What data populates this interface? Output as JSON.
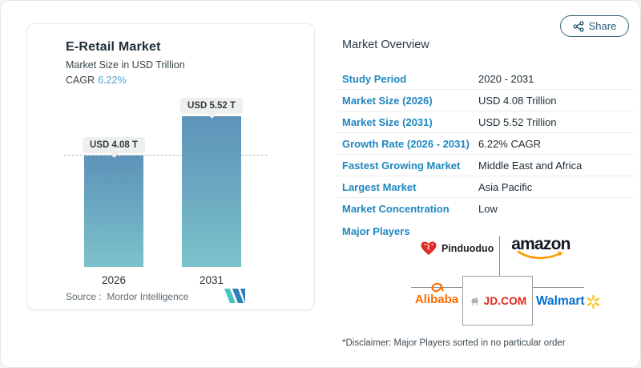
{
  "header": {
    "share_label": "Share"
  },
  "chart_panel": {
    "title": "E-Retail Market",
    "subtitle": "Market Size in USD Trillion",
    "cagr_label": "CAGR",
    "cagr_value": "6.22%",
    "source_label": "Source :",
    "source_value": "Mordor Intelligence",
    "logo_name": "mordor-intelligence"
  },
  "chart_data": {
    "type": "bar",
    "title": "E-Retail Market",
    "subtitle": "Market Size in USD Trillion",
    "unit": "USD Trillion",
    "categories": [
      "2026",
      "2031"
    ],
    "values": [
      4.08,
      5.52
    ],
    "value_labels": [
      "USD 4.08 T",
      "USD 5.52 T"
    ],
    "cagr": "6.22%",
    "ylim": [
      0,
      5.8
    ],
    "reference_line": 4.08,
    "grid": false,
    "legend": false,
    "bar_gradient_top": "#5d93b9",
    "bar_gradient_bottom": "#7cc2ca"
  },
  "overview": {
    "title": "Market Overview",
    "rows": [
      {
        "label": "Study Period",
        "value": "2020 - 2031"
      },
      {
        "label": "Market Size (2026)",
        "value": "USD 4.08 Trillion"
      },
      {
        "label": "Market Size (2031)",
        "value": "USD 5.52 Trillion"
      },
      {
        "label": "Growth Rate (2026 - 2031)",
        "value": "6.22% CAGR"
      },
      {
        "label": "Fastest Growing Market",
        "value": "Middle East and Africa"
      },
      {
        "label": "Largest Market",
        "value": "Asia Pacific"
      },
      {
        "label": "Market Concentration",
        "value": "Low"
      }
    ],
    "major_players_label": "Major Players",
    "players": {
      "pinduoduo": "Pinduoduo",
      "amazon": "amazon",
      "alibaba": "Alibaba",
      "jd": "JD.COM",
      "walmart": "Walmart"
    },
    "disclaimer": "*Disclaimer: Major Players sorted in no particular order"
  },
  "colors": {
    "label_blue": "#1e87c0",
    "cagr_blue": "#52a0d4",
    "share_teal": "#2d5c76",
    "amazon_orange": "#ff9900",
    "alibaba_orange": "#ff6a00",
    "jd_red": "#e1251b",
    "walmart_blue": "#0071ce",
    "walmart_yellow": "#ffc220",
    "pinduoduo_red": "#e02d24",
    "mordor_teal": "#47c2c1",
    "mordor_blue": "#2f7fba"
  }
}
